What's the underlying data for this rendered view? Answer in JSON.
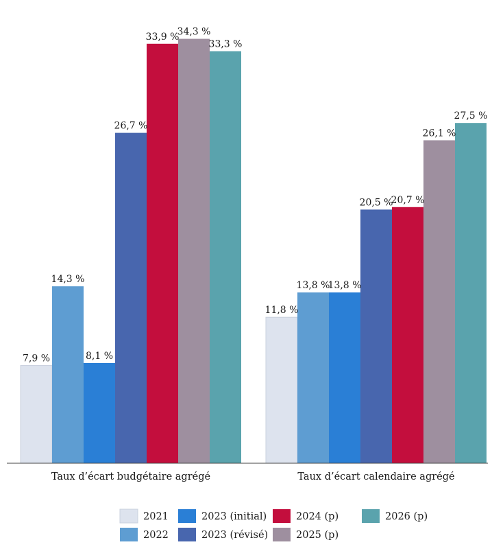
{
  "chart_data": {
    "type": "bar",
    "categories": [
      "Taux d’écart budgétaire agrégé",
      "Taux d’écart calendaire agrégé"
    ],
    "ylim": [
      0,
      36.5
    ],
    "grid": false,
    "legend_position": "bottom",
    "series": [
      {
        "name": "2021",
        "color": "#dde3ee",
        "values": [
          7.9,
          11.8
        ],
        "labels": [
          "7,9 %",
          "11,8 %"
        ]
      },
      {
        "name": "2022",
        "color": "#5e9dd2",
        "values": [
          14.3,
          13.8
        ],
        "labels": [
          "14,3 %",
          "13,8 %"
        ]
      },
      {
        "name": "2023 (initial)",
        "color": "#2a7fd6",
        "values": [
          8.1,
          13.8
        ],
        "labels": [
          "8,1 %",
          "13,8 %"
        ]
      },
      {
        "name": "2023 (révisé)",
        "color": "#4866ae",
        "values": [
          26.7,
          20.5
        ],
        "labels": [
          "26,7 %",
          "20,5 %"
        ]
      },
      {
        "name": "2024 (p)",
        "color": "#c30e3d",
        "values": [
          33.9,
          20.7
        ],
        "labels": [
          "33,9 %",
          "20,7 %"
        ]
      },
      {
        "name": "2025 (p)",
        "color": "#9e8f9f",
        "values": [
          34.3,
          26.1
        ],
        "labels": [
          "34,3 %",
          "26,1 %"
        ]
      },
      {
        "name": "2026 (p)",
        "color": "#5aa3ad",
        "values": [
          33.3,
          27.5
        ],
        "labels": [
          "33,3 %",
          "27,5 %"
        ]
      }
    ]
  }
}
